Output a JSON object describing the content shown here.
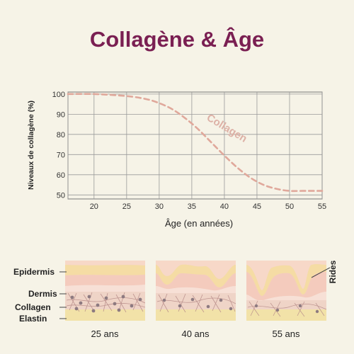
{
  "title": "Collagène & Âge",
  "colors": {
    "title": "#7a1f52",
    "curve": "#e0a89b",
    "background": "#f6f3e7",
    "skin_top": "#f7d8c8",
    "skin_band": "#f5dca4",
    "dermis": "#efd4c7"
  },
  "chart_data": {
    "type": "line",
    "xlabel": "Âge (en années)",
    "ylabel": "Niveaux de collagène (%)",
    "xlim": [
      16,
      55
    ],
    "ylim": [
      48,
      101
    ],
    "x_ticks": [
      20,
      25,
      30,
      35,
      40,
      45,
      50,
      55
    ],
    "y_ticks": [
      50,
      60,
      70,
      80,
      90,
      100
    ],
    "grid": true,
    "series": [
      {
        "name": "Collagen",
        "x": [
          16,
          20,
          25,
          28,
          30,
          32,
          34,
          36,
          38,
          40,
          42,
          44,
          46,
          48,
          50,
          52,
          55
        ],
        "y": [
          100,
          100,
          99,
          97.5,
          95.5,
          92.5,
          88,
          82.5,
          76,
          69.5,
          63.5,
          58.5,
          55,
          53,
          52,
          52,
          52
        ]
      }
    ]
  },
  "skin": {
    "layer_labels": [
      "Epidermis",
      "Dermis",
      "Collagen",
      "Elastin"
    ],
    "wrinkles_label": "Rides",
    "panels": [
      {
        "age": "25 ans"
      },
      {
        "age": "40 ans"
      },
      {
        "age": "55 ans"
      }
    ]
  }
}
